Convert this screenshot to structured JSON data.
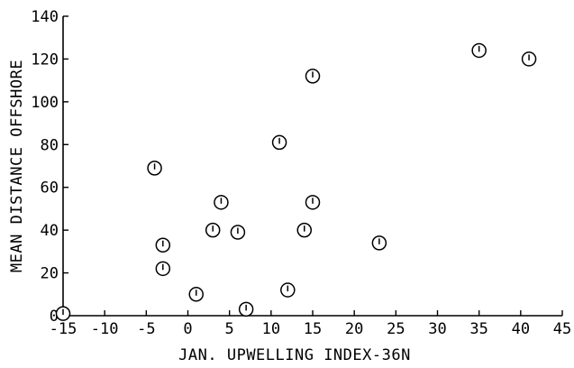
{
  "chart_data": {
    "type": "scatter",
    "xlabel": "JAN. UPWELLING INDEX-36N",
    "ylabel": "MEAN DISTANCE OFFSHORE",
    "xlim": [
      -15,
      45
    ],
    "ylim": [
      0,
      140
    ],
    "xticks": [
      -15,
      -10,
      -5,
      0,
      5,
      10,
      15,
      20,
      25,
      30,
      35,
      40,
      45
    ],
    "yticks": [
      0,
      20,
      40,
      60,
      80,
      100,
      120,
      140
    ],
    "grid": false,
    "series": [
      {
        "points": [
          {
            "x": -15,
            "y": 1
          },
          {
            "x": -4,
            "y": 69
          },
          {
            "x": -3,
            "y": 33
          },
          {
            "x": -3,
            "y": 22
          },
          {
            "x": 1,
            "y": 10
          },
          {
            "x": 3,
            "y": 40
          },
          {
            "x": 4,
            "y": 53
          },
          {
            "x": 6,
            "y": 39
          },
          {
            "x": 7,
            "y": 3
          },
          {
            "x": 11,
            "y": 81
          },
          {
            "x": 12,
            "y": 12
          },
          {
            "x": 14,
            "y": 40
          },
          {
            "x": 15,
            "y": 112
          },
          {
            "x": 15,
            "y": 53
          },
          {
            "x": 23,
            "y": 34
          },
          {
            "x": 35,
            "y": 124
          },
          {
            "x": 41,
            "y": 120
          }
        ]
      }
    ]
  }
}
